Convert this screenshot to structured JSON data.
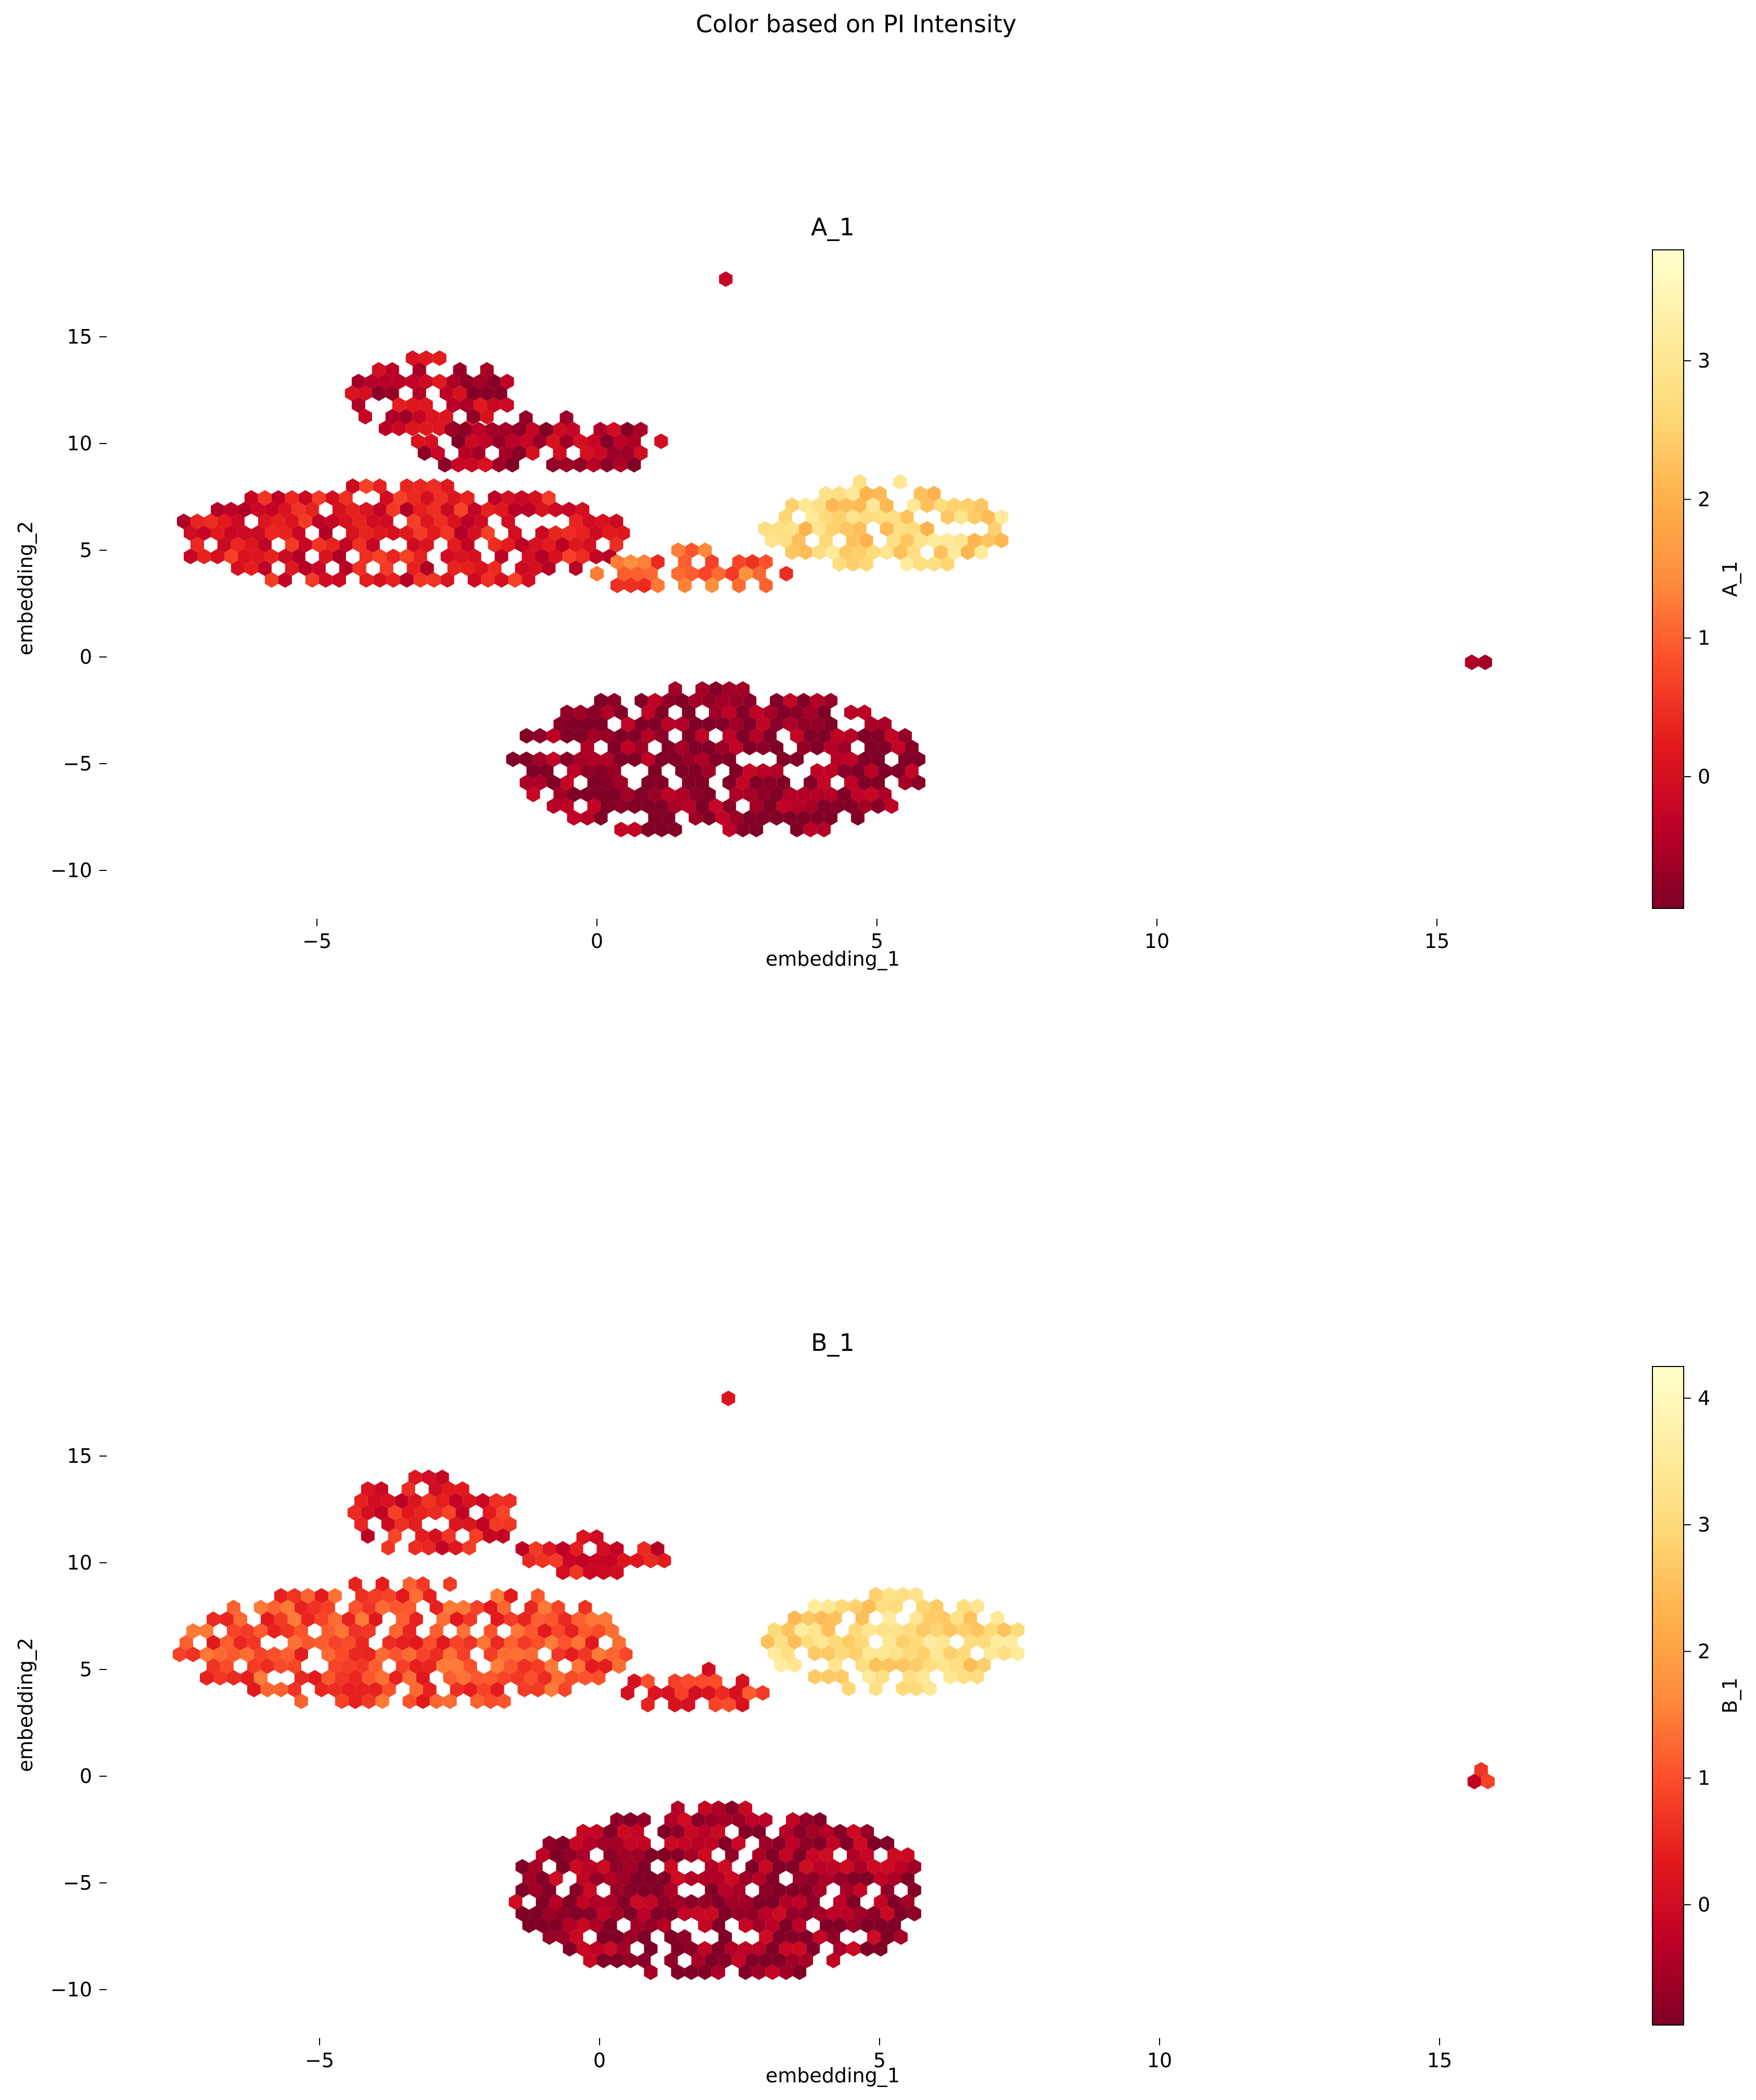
{
  "figure": {
    "suptitle": "Color based on PI Intensity"
  },
  "chart_data": [
    {
      "type": "heatmap",
      "kind": "hexbin",
      "title": "A_1",
      "xlabel": "embedding_1",
      "ylabel": "embedding_2",
      "xlim": [
        -8.5,
        19
      ],
      "ylim": [
        -11.5,
        18.5
      ],
      "xticks": [
        -5,
        0,
        5,
        10,
        15
      ],
      "yticks": [
        -10,
        -5,
        0,
        5,
        10,
        15
      ],
      "grid": false,
      "colormap": "YlOrRd_r",
      "colorbar": {
        "label": "A_1",
        "range": [
          -0.95,
          3.8
        ],
        "ticks": [
          0,
          1,
          2,
          3
        ]
      },
      "regions": [
        {
          "name": "upper-left cluster",
          "x": [
            -7.5,
            0.5
          ],
          "y": [
            3.2,
            8.0
          ],
          "value": 0.1
        },
        {
          "name": "upper arm",
          "x": [
            -4.5,
            -1.5
          ],
          "y": [
            10.5,
            14.0
          ],
          "value": -0.3
        },
        {
          "name": "upper-middle blob",
          "x": [
            -3.2,
            1.2
          ],
          "y": [
            8.5,
            11.2
          ],
          "value": -0.5
        },
        {
          "name": "connecting band",
          "x": [
            0.0,
            3.5
          ],
          "y": [
            3.0,
            5.0
          ],
          "value": 1.0
        },
        {
          "name": "right arm",
          "x": [
            3.0,
            7.3
          ],
          "y": [
            4.0,
            8.2
          ],
          "value": 2.6
        },
        {
          "name": "lower cluster",
          "x": [
            -1.5,
            5.8
          ],
          "y": [
            -8.5,
            -1.5
          ],
          "value": -0.8
        },
        {
          "name": "outlier group",
          "x": [
            15.5,
            16.0
          ],
          "y": [
            -0.3,
            0.3
          ],
          "value": -0.4
        },
        {
          "name": "outlier point",
          "x": [
            2.3,
            2.3
          ],
          "y": [
            17.7,
            17.7
          ],
          "value": -0.2
        }
      ]
    },
    {
      "type": "heatmap",
      "kind": "hexbin",
      "title": "B_1",
      "xlabel": "embedding_1",
      "ylabel": "embedding_2",
      "xlim": [
        -8.5,
        19
      ],
      "ylim": [
        -11.5,
        18.5
      ],
      "xticks": [
        -5,
        0,
        5,
        10,
        15
      ],
      "yticks": [
        -10,
        -5,
        0,
        5,
        10,
        15
      ],
      "grid": false,
      "colormap": "YlOrRd_r",
      "colorbar": {
        "label": "B_1",
        "range": [
          -0.95,
          4.25
        ],
        "ticks": [
          0,
          1,
          2,
          3,
          4
        ]
      },
      "regions": [
        {
          "name": "upper-left cluster",
          "x": [
            -7.5,
            0.5
          ],
          "y": [
            3.2,
            9.0
          ],
          "value": 0.9
        },
        {
          "name": "upper arm",
          "x": [
            -4.5,
            -1.5
          ],
          "y": [
            10.5,
            14.0
          ],
          "value": 0.3
        },
        {
          "name": "upper-middle blob",
          "x": [
            -1.5,
            1.2
          ],
          "y": [
            9.5,
            11.2
          ],
          "value": 0.2
        },
        {
          "name": "connecting band",
          "x": [
            0.5,
            3.0
          ],
          "y": [
            3.0,
            5.0
          ],
          "value": 0.6
        },
        {
          "name": "right arm",
          "x": [
            3.0,
            7.5
          ],
          "y": [
            4.0,
            8.5
          ],
          "value": 3.0
        },
        {
          "name": "lower cluster",
          "x": [
            -1.5,
            5.8
          ],
          "y": [
            -9.5,
            -1.5
          ],
          "value": -0.6
        },
        {
          "name": "outlier group",
          "x": [
            15.5,
            16.0
          ],
          "y": [
            -0.3,
            0.3
          ],
          "value": 0.3
        },
        {
          "name": "outlier point",
          "x": [
            2.3,
            2.3
          ],
          "y": [
            17.7,
            17.7
          ],
          "value": 0.2
        }
      ]
    }
  ]
}
